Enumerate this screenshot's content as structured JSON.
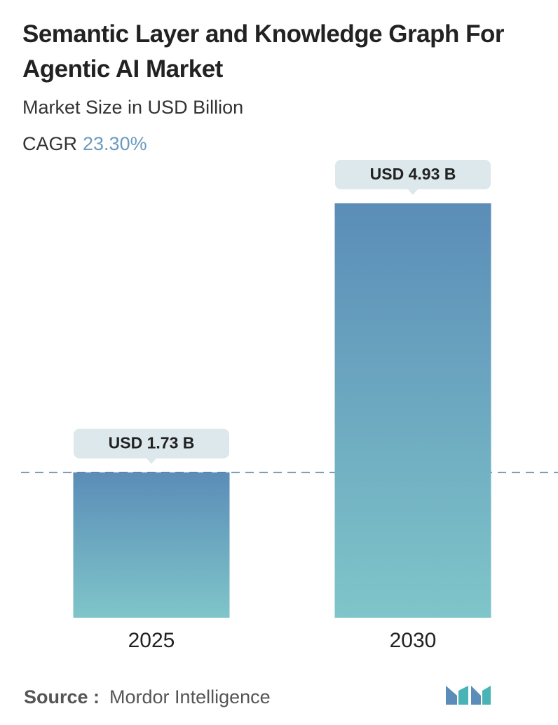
{
  "chart_data": {
    "type": "bar",
    "title": "Semantic Layer and Knowledge Graph For Agentic AI Market",
    "subtitle": "Market Size in USD Billion",
    "cagr_label": "CAGR",
    "cagr_value": "23.30%",
    "categories": [
      "2025",
      "2030"
    ],
    "values": [
      1.73,
      4.93
    ],
    "value_labels": [
      "USD 1.73 B",
      "USD 4.93 B"
    ],
    "colors": [
      "#5b8db8",
      "#7fc5c9"
    ],
    "source_label": "Source :",
    "source": "Mordor Intelligence"
  }
}
